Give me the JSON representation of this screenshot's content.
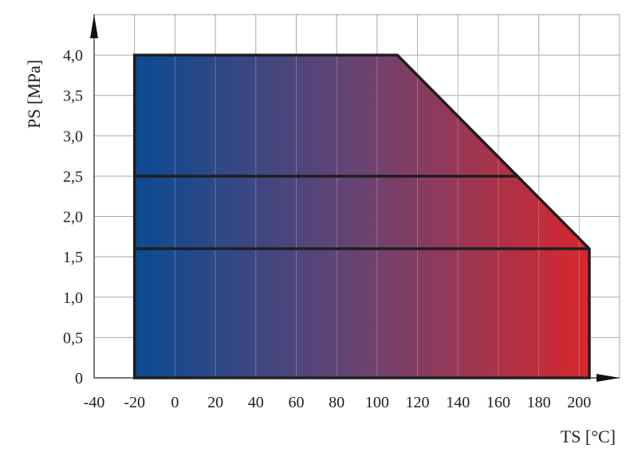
{
  "chart_data": {
    "type": "area",
    "xlabel": "TS [°C]",
    "ylabel": "PS [MPa]",
    "xlim": [
      -40,
      220
    ],
    "ylim": [
      0,
      4.5
    ],
    "x_ticks": [
      -40,
      -20,
      0,
      20,
      40,
      60,
      80,
      100,
      120,
      140,
      160,
      180,
      200
    ],
    "x_tick_labels": [
      "-40",
      "-20",
      "0",
      "20",
      "40",
      "60",
      "80",
      "100",
      "120",
      "140",
      "160",
      "180",
      "200"
    ],
    "y_ticks": [
      0,
      0.5,
      1.0,
      1.5,
      2.0,
      2.5,
      3.0,
      3.5,
      4.0
    ],
    "y_tick_labels": [
      "0",
      "0,5",
      "1,0",
      "1,5",
      "2,0",
      "2,5",
      "3,0",
      "3,5",
      "4,0"
    ],
    "grid": true,
    "region": {
      "points": [
        [
          -20,
          0
        ],
        [
          -20,
          4.0
        ],
        [
          110,
          4.0
        ],
        [
          205,
          1.6
        ],
        [
          205,
          0
        ]
      ],
      "gradient": [
        "#0b4a92",
        "#6a4372",
        "#d6272d"
      ]
    },
    "limit_lines": [
      {
        "y": 2.5,
        "x": [
          -20,
          170
        ]
      },
      {
        "y": 1.6,
        "x": [
          -20,
          205
        ]
      }
    ]
  }
}
